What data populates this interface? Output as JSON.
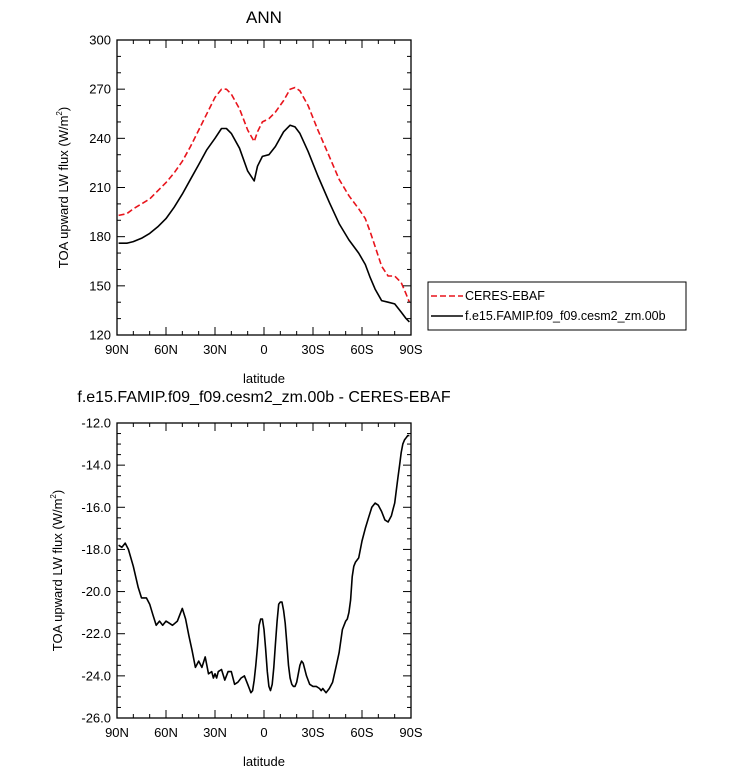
{
  "chart_data": [
    {
      "type": "line",
      "title": "ANN",
      "xlabel": "latitude",
      "ylabel": "TOA upward LW flux (W/m",
      "ylabel_sup": "2",
      "ylabel_close": ")",
      "xlim": [
        90,
        -90
      ],
      "ylim": [
        120,
        300
      ],
      "x_ticks": [
        90,
        60,
        30,
        0,
        -30,
        -60,
        -90
      ],
      "x_tick_labels": [
        "90N",
        "60N",
        "30N",
        "0",
        "30S",
        "60S",
        "90S"
      ],
      "y_ticks": [
        120,
        150,
        180,
        210,
        240,
        270,
        300
      ],
      "y_tick_labels": [
        "120",
        "150",
        "180",
        "210",
        "240",
        "270",
        "300"
      ],
      "legend_position": "right",
      "series": [
        {
          "name": "CERES-EBAF",
          "color": "#e8141c",
          "dash": "dashed",
          "x": [
            89,
            84,
            80,
            75,
            70,
            65,
            60,
            55,
            50,
            45,
            40,
            35,
            30,
            26,
            23,
            20,
            15,
            10,
            6,
            4,
            1,
            -3,
            -7,
            -12,
            -16,
            -19,
            -22,
            -27,
            -33,
            -40,
            -46,
            -52,
            -58,
            -62,
            -65,
            -68,
            -72,
            -76,
            -80,
            -84,
            -87,
            -89
          ],
          "y": [
            193,
            194,
            197,
            200,
            203,
            208,
            213,
            219,
            226,
            235,
            245,
            255,
            265,
            270,
            270,
            267,
            258,
            245,
            238,
            244,
            250,
            252,
            256,
            263,
            270,
            271,
            269,
            260,
            245,
            229,
            215,
            205,
            197,
            191,
            183,
            174,
            162,
            156,
            156,
            152,
            145,
            140
          ]
        },
        {
          "name": "f.e15.FAMIP.f09_f09.cesm2_zm.00b",
          "color": "#000000",
          "dash": "solid",
          "x": [
            89,
            84,
            80,
            75,
            70,
            65,
            60,
            55,
            50,
            45,
            40,
            35,
            30,
            26,
            23,
            20,
            15,
            10,
            6,
            4,
            1,
            -3,
            -7,
            -12,
            -16,
            -19,
            -22,
            -27,
            -33,
            -40,
            -46,
            -52,
            -58,
            -62,
            -65,
            -68,
            -72,
            -76,
            -80,
            -84,
            -87,
            -89
          ],
          "y": [
            176,
            176,
            177,
            179,
            182,
            186,
            191,
            198,
            206,
            215,
            224,
            233,
            240,
            246,
            246,
            243,
            234,
            220,
            214,
            223,
            229,
            230,
            235,
            244,
            248,
            247,
            243,
            232,
            217,
            201,
            188,
            178,
            170,
            163,
            155,
            148,
            141,
            140,
            139,
            134,
            130,
            128
          ]
        }
      ]
    },
    {
      "type": "line",
      "title": "f.e15.FAMIP.f09_f09.cesm2_zm.00b - CERES-EBAF",
      "xlabel": "latitude",
      "ylabel": "TOA upward LW flux (W/m",
      "ylabel_sup": "2",
      "ylabel_close": ")",
      "xlim": [
        90,
        -90
      ],
      "ylim": [
        -26,
        -12
      ],
      "x_ticks": [
        90,
        60,
        30,
        0,
        -30,
        -60,
        -90
      ],
      "x_tick_labels": [
        "90N",
        "60N",
        "30N",
        "0",
        "30S",
        "60S",
        "90S"
      ],
      "y_ticks": [
        -26,
        -24,
        -22,
        -20,
        -18,
        -16,
        -14,
        -12
      ],
      "y_tick_labels": [
        "-26.0",
        "-24.0",
        "-22.0",
        "-20.0",
        "-18.0",
        "-16.0",
        "-14.0",
        "-12.0"
      ],
      "series": [
        {
          "name": "",
          "color": "#000000",
          "dash": "solid",
          "x": [
            89,
            87,
            85,
            83,
            80,
            77,
            75,
            72,
            70,
            68,
            66,
            64,
            62,
            60,
            58,
            56,
            53,
            50,
            48,
            46,
            44,
            42,
            40,
            38,
            36,
            34,
            32,
            31,
            30,
            29,
            28,
            26,
            24,
            22,
            20,
            18,
            16,
            14,
            12,
            10,
            9,
            8,
            7,
            6,
            5,
            4,
            3,
            2,
            1,
            0,
            -1,
            -2,
            -3,
            -4,
            -5,
            -6,
            -7,
            -8,
            -9,
            -10,
            -11,
            -12,
            -13,
            -14,
            -15,
            -16,
            -17,
            -18,
            -19,
            -20,
            -21,
            -22,
            -23,
            -24,
            -26,
            -27,
            -28,
            -30,
            -32,
            -34,
            -35,
            -36,
            -37,
            -38,
            -40,
            -42,
            -44,
            -46,
            -48,
            -50,
            -51,
            -52,
            -53,
            -54,
            -55,
            -56,
            -58,
            -60,
            -62,
            -64,
            -66,
            -68,
            -70,
            -72,
            -74,
            -76,
            -78,
            -79,
            -80,
            -81,
            -82,
            -83,
            -84,
            -85,
            -86,
            -87,
            -88,
            -89
          ],
          "y": [
            -17.8,
            -17.9,
            -17.7,
            -18.0,
            -18.8,
            -19.8,
            -20.3,
            -20.3,
            -20.6,
            -21.1,
            -21.6,
            -21.4,
            -21.6,
            -21.4,
            -21.5,
            -21.6,
            -21.4,
            -20.8,
            -21.3,
            -22.1,
            -22.8,
            -23.6,
            -23.3,
            -23.6,
            -23.1,
            -23.9,
            -23.8,
            -24.1,
            -23.9,
            -24.1,
            -23.8,
            -23.7,
            -24.2,
            -23.8,
            -23.8,
            -24.4,
            -24.3,
            -24.1,
            -24.0,
            -24.4,
            -24.6,
            -24.8,
            -24.7,
            -24.2,
            -23.5,
            -22.6,
            -21.6,
            -21.3,
            -21.3,
            -21.8,
            -22.7,
            -23.8,
            -24.5,
            -24.7,
            -24.4,
            -23.6,
            -22.5,
            -21.4,
            -20.6,
            -20.5,
            -20.5,
            -20.9,
            -21.5,
            -22.5,
            -23.5,
            -24.1,
            -24.4,
            -24.5,
            -24.5,
            -24.3,
            -23.9,
            -23.5,
            -23.3,
            -23.4,
            -24.0,
            -24.2,
            -24.4,
            -24.5,
            -24.5,
            -24.6,
            -24.7,
            -24.6,
            -24.7,
            -24.8,
            -24.6,
            -24.3,
            -23.6,
            -22.9,
            -21.8,
            -21.4,
            -21.3,
            -21.0,
            -20.4,
            -19.3,
            -18.8,
            -18.6,
            -18.4,
            -17.6,
            -17.0,
            -16.5,
            -16.0,
            -15.8,
            -15.9,
            -16.2,
            -16.6,
            -16.7,
            -16.4,
            -16.1,
            -15.8,
            -15.2,
            -14.6,
            -14.0,
            -13.4,
            -13.0,
            -12.8,
            -12.7,
            -12.6,
            -12.6
          ]
        }
      ]
    }
  ]
}
